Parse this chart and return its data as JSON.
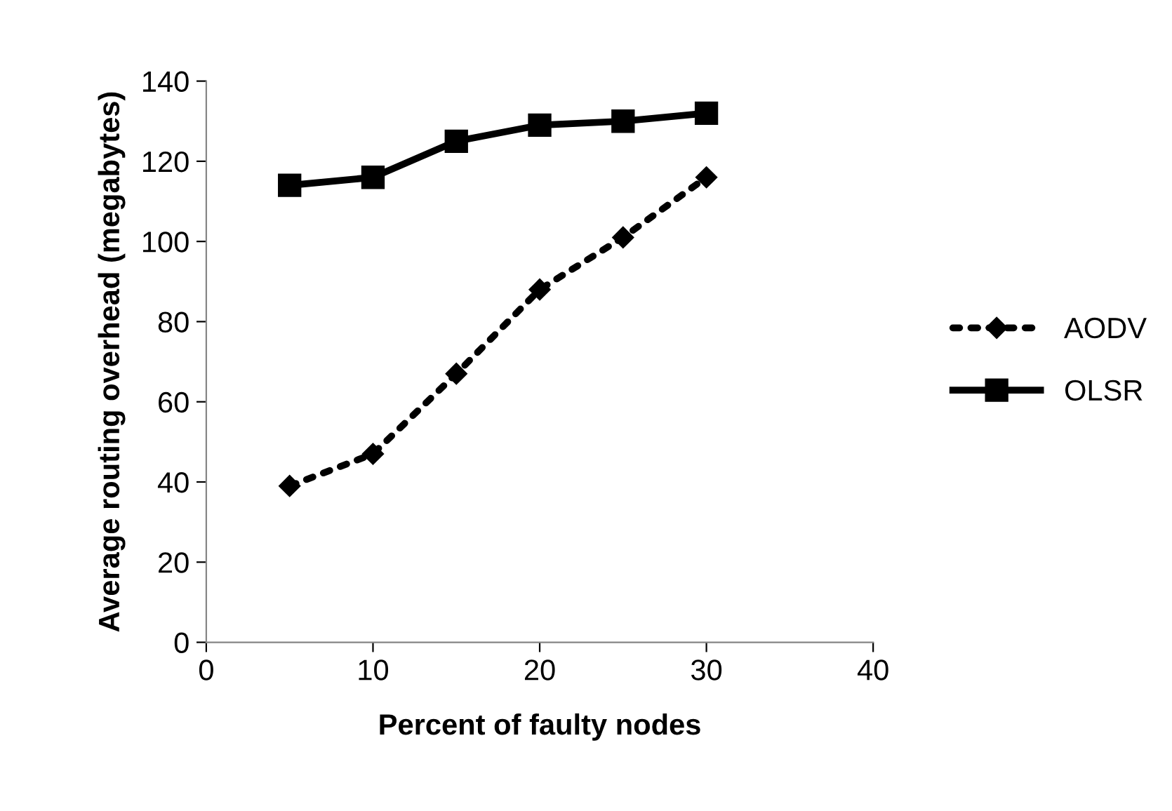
{
  "chart_data": {
    "type": "line",
    "xlabel": "Percent of faulty nodes",
    "ylabel": "Average routing overhead (megabytes)",
    "x": [
      5,
      10,
      15,
      20,
      25,
      30
    ],
    "series": [
      {
        "name": "AODV",
        "color": "#000000",
        "values": [
          39,
          47,
          67,
          88,
          101,
          116
        ],
        "marker": "diamond",
        "line_style": "dotted"
      },
      {
        "name": "OLSR",
        "color": "#000000",
        "values": [
          114,
          116,
          125,
          129,
          130,
          132
        ],
        "marker": "square",
        "line_style": "solid"
      }
    ],
    "xlim": [
      0,
      40
    ],
    "xticks": [
      0,
      10,
      20,
      30,
      40
    ],
    "ylim": [
      0,
      140
    ],
    "yticks": [
      0,
      20,
      40,
      60,
      80,
      100,
      120,
      140
    ],
    "grid": false,
    "legend": "right"
  }
}
